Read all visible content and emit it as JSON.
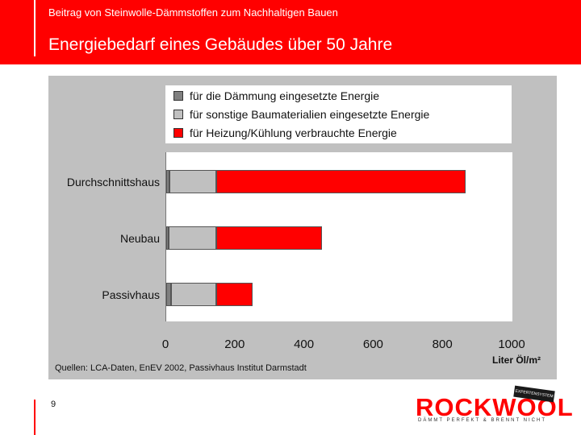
{
  "header": {
    "subtitle": "Beitrag von Steinwolle-Dämmstoffen zum Nachhaltigen Bauen",
    "title": "Energiebedarf eines Gebäudes über 50 Jahre"
  },
  "colors": {
    "accent": "#ff0000",
    "chart_bg": "#c0c0c0",
    "series_daemmung": "#808080",
    "series_sonstige": "#c0c0c0",
    "series_heizung": "#ff0000"
  },
  "chart_data": {
    "type": "bar",
    "orientation": "horizontal",
    "stacked": true,
    "categories": [
      "Durchschnittshaus",
      "Neubau",
      "Passivhaus"
    ],
    "series": [
      {
        "name": "für die Dämmung eingesetzte Energie",
        "values": [
          10,
          8,
          15
        ]
      },
      {
        "name": "für sonstige Baumaterialien eingesetzte Energie",
        "values": [
          135,
          137,
          130
        ]
      },
      {
        "name": "für Heizung/Kühlung verbrauchte Energie",
        "values": [
          720,
          305,
          105
        ]
      }
    ],
    "xlim": [
      0,
      1000
    ],
    "xticks": [
      "0",
      "200",
      "400",
      "600",
      "800",
      "1000"
    ],
    "xlabel": "Liter Öl/m²",
    "ylabel": "",
    "legend_position": "top"
  },
  "source": "Quellen: LCA-Daten, EnEV 2002, Passivhaus Institut Darmstadt",
  "page_number": "9",
  "logo": {
    "text": "ROCKWOOL",
    "tagline": "DÄMMT PERFEKT & BRENNT NICHT",
    "badge": "EXPERTENSYSTEM"
  }
}
